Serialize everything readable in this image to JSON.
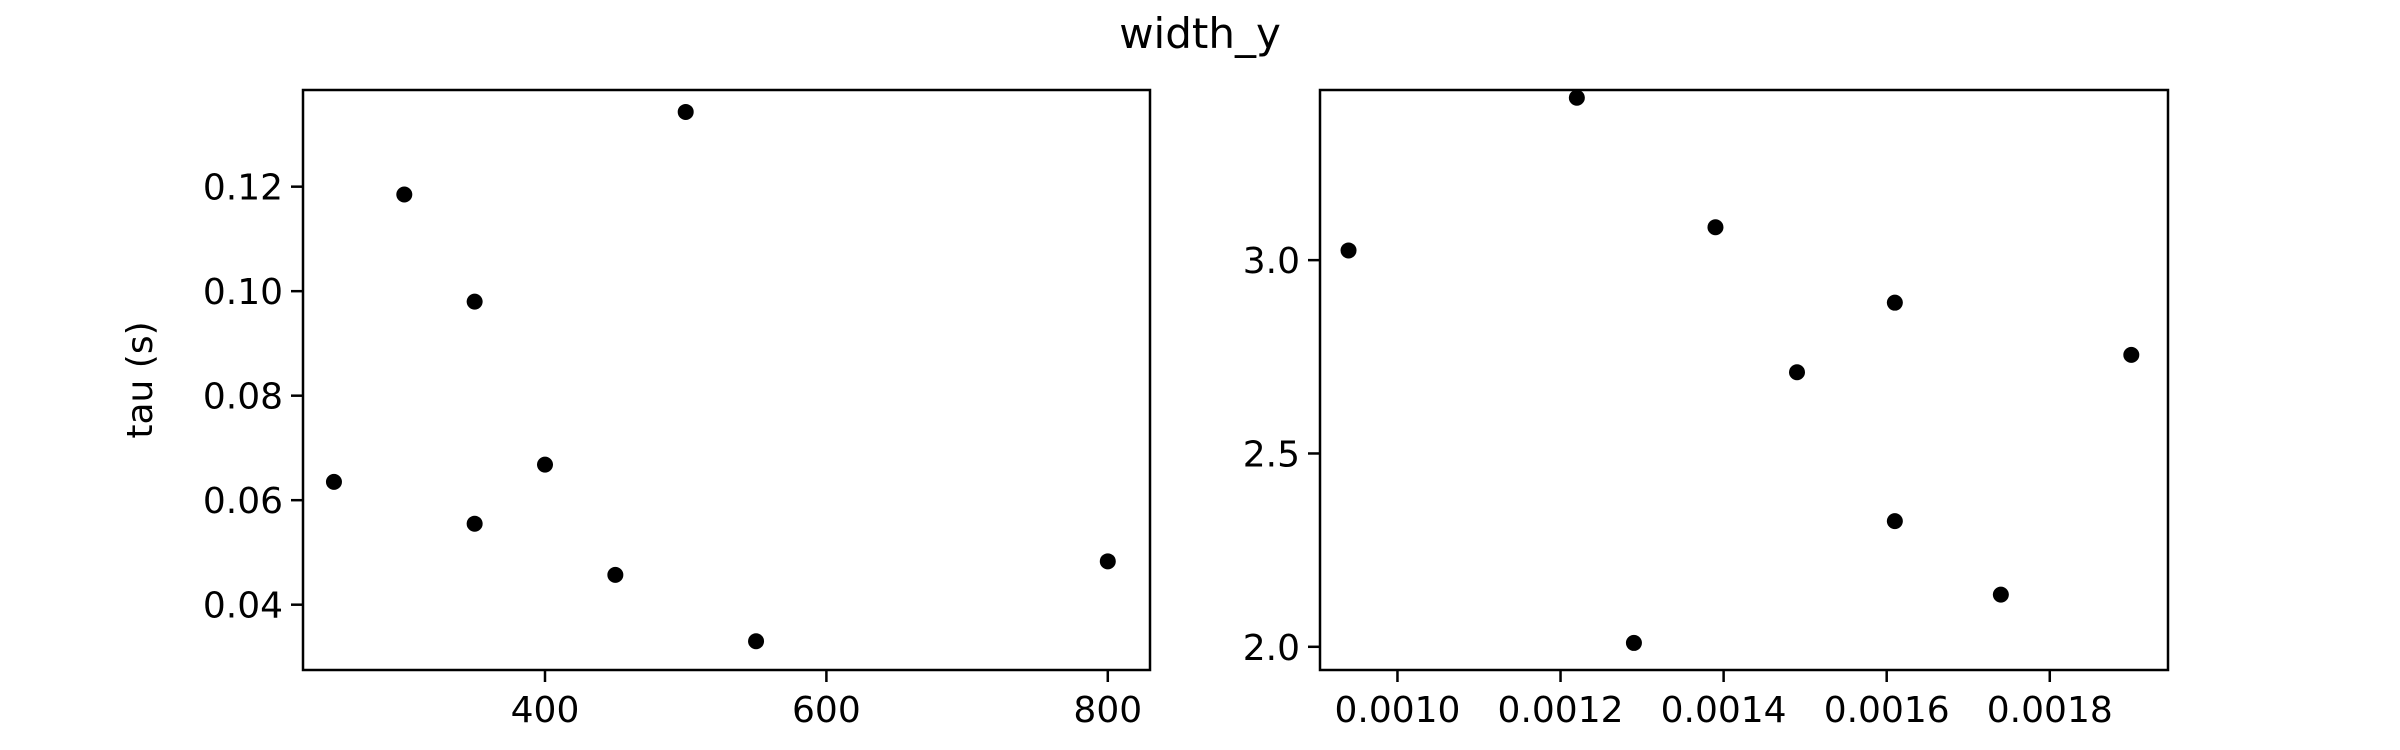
{
  "figure": {
    "title": "width_y"
  },
  "chart_data": [
    {
      "type": "scatter",
      "title": "",
      "xlabel": "",
      "ylabel": "tau (s)",
      "xlim": [
        228,
        830
      ],
      "ylim": [
        0.0275,
        0.1385
      ],
      "xticks": [
        400,
        600,
        800
      ],
      "xtick_labels": [
        "400",
        "600",
        "800"
      ],
      "yticks": [
        0.04,
        0.06,
        0.08,
        0.1,
        0.12
      ],
      "ytick_labels": [
        "0.04",
        "0.06",
        "0.08",
        "0.10",
        "0.12"
      ],
      "grid": false,
      "marker_color": "#000000",
      "series": [
        {
          "x": [
            250,
            300,
            350,
            350,
            400,
            450,
            500,
            550,
            800
          ],
          "y": [
            0.0635,
            0.1185,
            0.098,
            0.0555,
            0.0668,
            0.0457,
            0.1343,
            0.033,
            0.0483
          ]
        }
      ]
    },
    {
      "type": "scatter",
      "title": "",
      "xlabel": "",
      "ylabel": "",
      "xlim": [
        0.000905,
        0.001945
      ],
      "ylim": [
        1.94,
        3.44
      ],
      "xticks": [
        0.001,
        0.0012,
        0.0014,
        0.0016,
        0.0018
      ],
      "xtick_labels": [
        "0.0010",
        "0.0012",
        "0.0014",
        "0.0016",
        "0.0018"
      ],
      "yticks": [
        2.0,
        2.5,
        3.0
      ],
      "ytick_labels": [
        "2.0",
        "2.5",
        "3.0"
      ],
      "grid": false,
      "marker_color": "#000000",
      "series": [
        {
          "x": [
            0.00094,
            0.00122,
            0.00129,
            0.00139,
            0.00149,
            0.00161,
            0.00161,
            0.00174,
            0.0019
          ],
          "y": [
            3.025,
            3.42,
            2.01,
            3.085,
            2.71,
            2.89,
            2.325,
            2.135,
            2.755
          ]
        }
      ]
    }
  ]
}
